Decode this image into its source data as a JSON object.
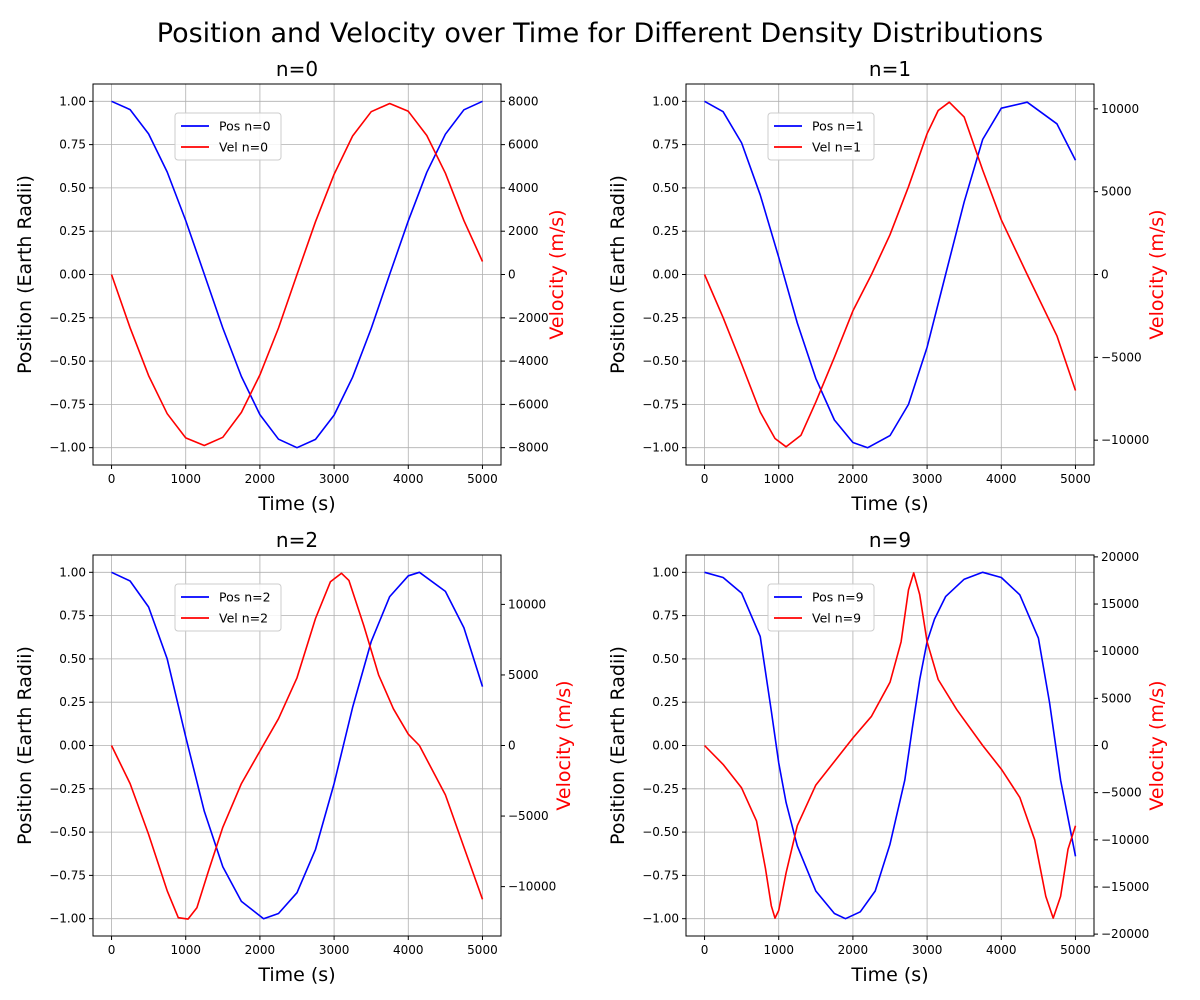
{
  "figure": {
    "title": "Position and Velocity over Time for Different Density Distributions"
  },
  "colors": {
    "position": "#0000ff",
    "velocity": "#ff0000",
    "grid": "#b0b0b0",
    "axis": "#000000"
  },
  "chart_data": [
    {
      "type": "line",
      "title": "n=0",
      "xlabel": "Time (s)",
      "ylabel": "Position (Earth Radii)",
      "y2label": "Velocity (m/s)",
      "xlim": [
        -250,
        5250
      ],
      "ylim": [
        -1.1,
        1.1
      ],
      "y2lim": [
        -8800,
        8800
      ],
      "xticks": [
        0,
        1000,
        2000,
        3000,
        4000,
        5000
      ],
      "yticks": [
        -1.0,
        -0.75,
        -0.5,
        -0.25,
        0.0,
        0.25,
        0.5,
        0.75,
        1.0
      ],
      "y2ticks": [
        -8000,
        -6000,
        -4000,
        -2000,
        0,
        2000,
        4000,
        6000,
        8000
      ],
      "grid": true,
      "legend": "upper-left",
      "series": [
        {
          "name": "Pos n=0",
          "axis": "left",
          "x": [
            0,
            250,
            500,
            750,
            1000,
            1250,
            1500,
            1750,
            2000,
            2250,
            2500,
            2750,
            3000,
            3250,
            3500,
            3750,
            4000,
            4250,
            4500,
            4750,
            5000
          ],
          "y": [
            1.0,
            0.952,
            0.812,
            0.592,
            0.312,
            0.002,
            -0.309,
            -0.589,
            -0.809,
            -0.951,
            -1.0,
            -0.952,
            -0.812,
            -0.593,
            -0.312,
            0.001,
            0.31,
            0.59,
            0.81,
            0.951,
            1.0
          ]
        },
        {
          "name": "Vel n=0",
          "axis": "right",
          "x": [
            0,
            250,
            500,
            750,
            1000,
            1250,
            1500,
            1750,
            2000,
            2250,
            2500,
            2750,
            3000,
            3250,
            3500,
            3750,
            4000,
            4250,
            4500,
            4750,
            5000
          ],
          "y": [
            0,
            -2460,
            -4670,
            -6430,
            -7550,
            -7900,
            -7520,
            -6370,
            -4640,
            -2470,
            0,
            2440,
            4630,
            6400,
            7520,
            7900,
            7540,
            6420,
            4680,
            2490,
            600
          ]
        }
      ]
    },
    {
      "type": "line",
      "title": "n=1",
      "xlabel": "Time (s)",
      "ylabel": "Position (Earth Radii)",
      "y2label": "Velocity (m/s)",
      "xlim": [
        -250,
        5250
      ],
      "ylim": [
        -1.1,
        1.1
      ],
      "y2lim": [
        -11500,
        11500
      ],
      "xticks": [
        0,
        1000,
        2000,
        3000,
        4000,
        5000
      ],
      "yticks": [
        -1.0,
        -0.75,
        -0.5,
        -0.25,
        0.0,
        0.25,
        0.5,
        0.75,
        1.0
      ],
      "y2ticks": [
        -10000,
        -5000,
        0,
        5000,
        10000
      ],
      "grid": true,
      "legend": "upper-left",
      "series": [
        {
          "name": "Pos n=1",
          "axis": "left",
          "x": [
            0,
            250,
            500,
            750,
            1000,
            1250,
            1500,
            1750,
            2000,
            2200,
            2500,
            2750,
            3000,
            3250,
            3500,
            3750,
            4000,
            4350,
            4750,
            5000
          ],
          "y": [
            1.0,
            0.94,
            0.76,
            0.46,
            0.1,
            -0.28,
            -0.6,
            -0.84,
            -0.97,
            -1.0,
            -0.93,
            -0.75,
            -0.42,
            0.0,
            0.42,
            0.78,
            0.96,
            0.995,
            0.87,
            0.66
          ]
        },
        {
          "name": "Vel n=1",
          "axis": "right",
          "x": [
            0,
            250,
            500,
            750,
            950,
            1100,
            1300,
            1500,
            1750,
            2000,
            2250,
            2500,
            2750,
            3000,
            3150,
            3300,
            3500,
            3750,
            4000,
            4350,
            4750,
            5000
          ],
          "y": [
            0,
            -2600,
            -5400,
            -8300,
            -9900,
            -10400,
            -9700,
            -7700,
            -5000,
            -2200,
            0,
            2400,
            5300,
            8500,
            9900,
            10400,
            9500,
            6300,
            3300,
            0,
            -3700,
            -7000
          ]
        }
      ]
    },
    {
      "type": "line",
      "title": "n=2",
      "xlabel": "Time (s)",
      "ylabel": "Position (Earth Radii)",
      "y2label": "Velocity (m/s)",
      "xlim": [
        -250,
        5250
      ],
      "ylim": [
        -1.1,
        1.1
      ],
      "y2lim": [
        -13500,
        13500
      ],
      "xticks": [
        0,
        1000,
        2000,
        3000,
        4000,
        5000
      ],
      "yticks": [
        -1.0,
        -0.75,
        -0.5,
        -0.25,
        0.0,
        0.25,
        0.5,
        0.75,
        1.0
      ],
      "y2ticks": [
        -10000,
        -5000,
        0,
        5000,
        10000
      ],
      "grid": true,
      "legend": "upper-left",
      "series": [
        {
          "name": "Pos n=2",
          "axis": "left",
          "x": [
            0,
            250,
            500,
            750,
            1000,
            1250,
            1500,
            1750,
            2050,
            2250,
            2500,
            2750,
            3000,
            3250,
            3500,
            3750,
            4000,
            4150,
            4500,
            4750,
            5000
          ],
          "y": [
            1.0,
            0.95,
            0.8,
            0.5,
            0.05,
            -0.38,
            -0.7,
            -0.9,
            -1.0,
            -0.97,
            -0.85,
            -0.6,
            -0.22,
            0.22,
            0.6,
            0.86,
            0.98,
            1.0,
            0.89,
            0.68,
            0.34
          ]
        },
        {
          "name": "Vel n=2",
          "axis": "right",
          "x": [
            0,
            250,
            500,
            750,
            900,
            1030,
            1150,
            1300,
            1500,
            1750,
            2000,
            2250,
            2500,
            2750,
            2950,
            3100,
            3200,
            3400,
            3600,
            3800,
            4000,
            4150,
            4500,
            4750,
            5000
          ],
          "y": [
            0,
            -2700,
            -6300,
            -10300,
            -12200,
            -12300,
            -11500,
            -9000,
            -5800,
            -2700,
            -400,
            1900,
            4800,
            9000,
            11600,
            12200,
            11700,
            8500,
            5000,
            2600,
            800,
            0,
            -3500,
            -7200,
            -10900
          ]
        }
      ]
    },
    {
      "type": "line",
      "title": "n=9",
      "xlabel": "Time (s)",
      "ylabel": "Position (Earth Radii)",
      "y2label": "Velocity (m/s)",
      "xlim": [
        -250,
        5250
      ],
      "ylim": [
        -1.1,
        1.1
      ],
      "y2lim": [
        -20200,
        20200
      ],
      "xticks": [
        0,
        1000,
        2000,
        3000,
        4000,
        5000
      ],
      "yticks": [
        -1.0,
        -0.75,
        -0.5,
        -0.25,
        0.0,
        0.25,
        0.5,
        0.75,
        1.0
      ],
      "y2ticks": [
        -20000,
        -15000,
        -10000,
        -5000,
        0,
        5000,
        10000,
        15000,
        20000
      ],
      "grid": true,
      "legend": "upper-left",
      "series": [
        {
          "name": "Pos n=9",
          "axis": "left",
          "x": [
            0,
            250,
            500,
            750,
            900,
            1000,
            1100,
            1250,
            1500,
            1750,
            1900,
            2100,
            2300,
            2500,
            2700,
            2800,
            2900,
            3000,
            3100,
            3250,
            3500,
            3750,
            4000,
            4250,
            4500,
            4650,
            4800,
            5000
          ],
          "y": [
            1.0,
            0.97,
            0.88,
            0.63,
            0.2,
            -0.1,
            -0.33,
            -0.58,
            -0.84,
            -0.97,
            -1.0,
            -0.96,
            -0.84,
            -0.57,
            -0.2,
            0.1,
            0.38,
            0.6,
            0.73,
            0.86,
            0.96,
            1.0,
            0.97,
            0.87,
            0.62,
            0.25,
            -0.2,
            -0.64
          ]
        },
        {
          "name": "Vel n=9",
          "axis": "right",
          "x": [
            0,
            250,
            500,
            700,
            820,
            900,
            950,
            1000,
            1100,
            1250,
            1500,
            1750,
            2000,
            2250,
            2500,
            2650,
            2750,
            2820,
            2900,
            3000,
            3150,
            3400,
            3750,
            4000,
            4250,
            4450,
            4600,
            4700,
            4800,
            4900,
            5000
          ],
          "y": [
            0,
            -2000,
            -4500,
            -8000,
            -13000,
            -17000,
            -18300,
            -17500,
            -13500,
            -8500,
            -4200,
            -1700,
            800,
            3100,
            6700,
            11000,
            16500,
            18300,
            16000,
            11000,
            7000,
            3800,
            0,
            -2500,
            -5500,
            -10000,
            -16000,
            -18300,
            -16000,
            -11000,
            -8500
          ]
        }
      ]
    }
  ]
}
